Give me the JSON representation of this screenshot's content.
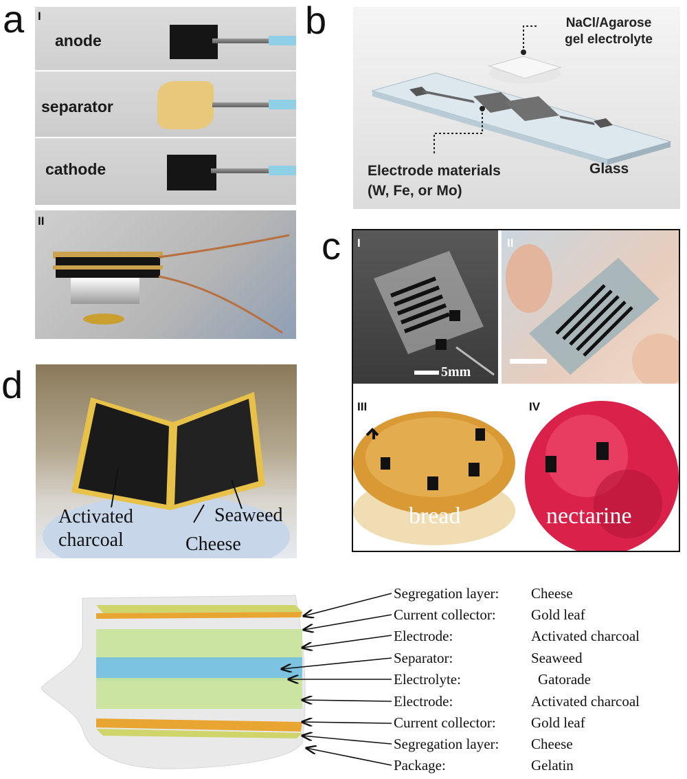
{
  "panels": {
    "a": {
      "letter": "a",
      "sub1": "I",
      "sub2": "II",
      "labels": [
        "anode",
        "separator",
        "cathode"
      ]
    },
    "b": {
      "letter": "b",
      "electrolyte_line1": "NaCl/Agarose",
      "electrolyte_line2": "gel electrolyte",
      "electrode_line1": "Electrode materials",
      "electrode_line2": "(W, Fe, or Mo)",
      "substrate": "Glass"
    },
    "c": {
      "letter": "c",
      "sub1": "I",
      "sub2": "II",
      "sub3": "III",
      "sub4": "IV",
      "scale": "5mm",
      "food1": "bread",
      "food2": "nectarine"
    },
    "d": {
      "letter": "d",
      "label_ac1": "Activated",
      "label_ac2": "charcoal",
      "label_cheese": "Cheese",
      "label_seaweed": "Seaweed",
      "legend": [
        {
          "role": "Segregation layer:",
          "material": "Cheese"
        },
        {
          "role": "Current collector:",
          "material": "Gold leaf"
        },
        {
          "role": "Electrode:",
          "material": "Activated charcoal"
        },
        {
          "role": "Separator:",
          "material": "Seaweed"
        },
        {
          "role": "Electrolyte:",
          "material": "Gatorade"
        },
        {
          "role": "Electrode:",
          "material": "Activated charcoal"
        },
        {
          "role": "Current collector:",
          "material": "Gold leaf"
        },
        {
          "role": "Segregation layer:",
          "material": "Cheese"
        },
        {
          "role": "Package:",
          "material": "Gelatin"
        }
      ]
    }
  }
}
